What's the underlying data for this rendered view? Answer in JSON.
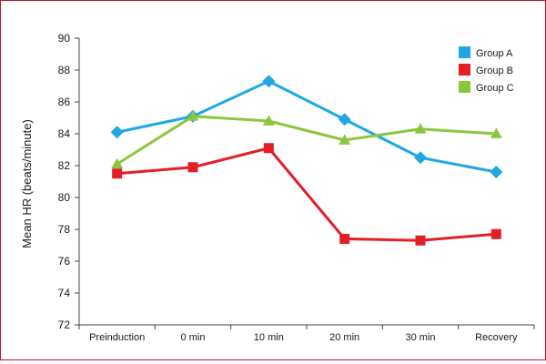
{
  "chart_data": {
    "type": "line",
    "title": "",
    "xlabel": "",
    "ylabel": "Mean HR (beats/minute)",
    "ylim": [
      72,
      90
    ],
    "ytick_step": 2,
    "categories": [
      "Preinduction",
      "0 min",
      "10 min",
      "20 min",
      "30 min",
      "Recovery"
    ],
    "grid": false,
    "legend_position": "top-right",
    "series": [
      {
        "name": "Group A",
        "color": "#1ea7e4",
        "marker": "diamond",
        "values": [
          84.1,
          85.1,
          87.3,
          84.9,
          82.5,
          81.6
        ]
      },
      {
        "name": "Group B",
        "color": "#e31e24",
        "marker": "square",
        "values": [
          81.5,
          81.9,
          83.1,
          77.4,
          77.3,
          77.7
        ]
      },
      {
        "name": "Group C",
        "color": "#8cc63f",
        "marker": "triangle",
        "values": [
          82.1,
          85.1,
          84.8,
          83.6,
          84.3,
          84.0
        ]
      }
    ]
  },
  "colors": {
    "frame_border": "#c8102e",
    "axis": "#444444"
  }
}
